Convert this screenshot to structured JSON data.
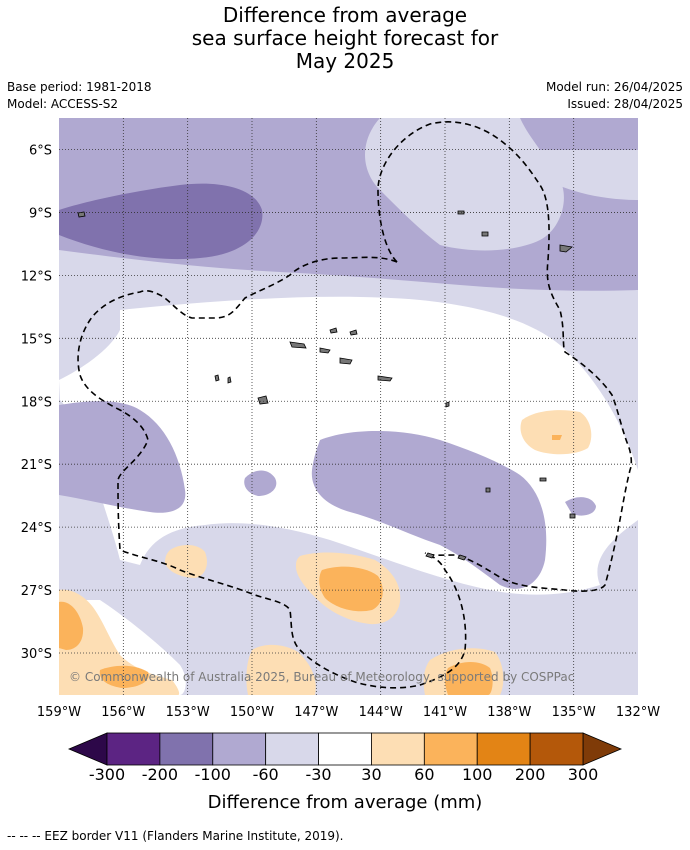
{
  "title_lines": [
    "Difference from average",
    "sea surface height forecast for",
    "May 2025"
  ],
  "base_period": "Base period: 1981-2018",
  "model": "Model: ACCESS-S2",
  "model_run": "Model run: 26/04/2025",
  "issued": "Issued: 28/04/2025",
  "copyright": "© Commonwealth of Australia 2025, Bureau of Meteorology, supported by COSPPac",
  "map": {
    "lon_range": [
      -159,
      -132
    ],
    "lat_range": [
      -32,
      -4.5
    ],
    "lon_ticks": [
      {
        "value": -159,
        "label": "159°W"
      },
      {
        "value": -156,
        "label": "156°W"
      },
      {
        "value": -153,
        "label": "153°W"
      },
      {
        "value": -150,
        "label": "150°W"
      },
      {
        "value": -147,
        "label": "147°W"
      },
      {
        "value": -144,
        "label": "144°W"
      },
      {
        "value": -141,
        "label": "141°W"
      },
      {
        "value": -138,
        "label": "138°W"
      },
      {
        "value": -135,
        "label": "135°W"
      },
      {
        "value": -132,
        "label": "132°W"
      }
    ],
    "lat_ticks": [
      {
        "value": -6,
        "label": "6°S"
      },
      {
        "value": -9,
        "label": "9°S"
      },
      {
        "value": -12,
        "label": "12°S"
      },
      {
        "value": -15,
        "label": "15°S"
      },
      {
        "value": -18,
        "label": "18°S"
      },
      {
        "value": -21,
        "label": "21°S"
      },
      {
        "value": -24,
        "label": "24°S"
      },
      {
        "value": -27,
        "label": "27°S"
      },
      {
        "value": -30,
        "label": "30°S"
      }
    ],
    "grid_style": "dotted"
  },
  "colorbar": {
    "title": "Difference from average (mm)",
    "levels": [
      "-300",
      "-200",
      "-100",
      "-60",
      "-30",
      "30",
      "60",
      "100",
      "200",
      "300"
    ],
    "colors": [
      "#5c2483",
      "#8072ad",
      "#b0a9d1",
      "#d8d8ea",
      "#ffffff",
      "#fddeb4",
      "#fbb35b",
      "#e38415",
      "#b4580a"
    ],
    "under_color": "#2d0849",
    "over_color": "#7f3b08"
  },
  "footer": "--  --  -- EEZ border V11 (Flanders Marine Institute, 2019)."
}
